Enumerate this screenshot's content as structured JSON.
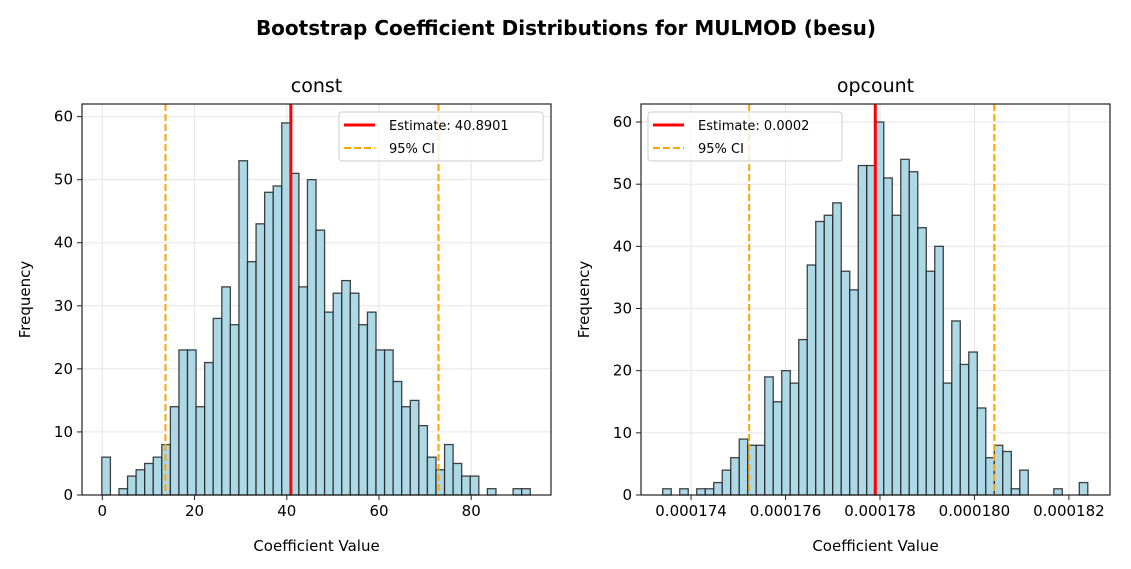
{
  "title": "Bootstrap Coefficient Distributions for MULMOD (besu)",
  "chart_data": [
    {
      "type": "bar",
      "subtype": "histogram",
      "title": "const",
      "xlabel": "Coefficient Value",
      "ylabel": "Frequency",
      "bin_range": [
        -0.1,
        92.8
      ],
      "counts": [
        6,
        0,
        1,
        3,
        4,
        5,
        6,
        8,
        14,
        23,
        23,
        14,
        21,
        28,
        33,
        27,
        53,
        37,
        43,
        48,
        49,
        59,
        51,
        33,
        50,
        42,
        29,
        32,
        34,
        32,
        27,
        29,
        23,
        23,
        18,
        14,
        15,
        11,
        6,
        4,
        8,
        5,
        3,
        3,
        0,
        1,
        0,
        0,
        1,
        1
      ],
      "xlim": [
        -4.4,
        97.3
      ],
      "ylim": [
        0,
        62
      ],
      "xticks": [
        0,
        20,
        40,
        60,
        80
      ],
      "xtick_labels": [
        "0",
        "20",
        "40",
        "60",
        "80"
      ],
      "yticks": [
        0,
        10,
        20,
        30,
        40,
        50,
        60
      ],
      "ytick_labels": [
        "0",
        "10",
        "20",
        "30",
        "40",
        "50",
        "60"
      ],
      "estimate": 40.8901,
      "ci": [
        13.7,
        72.9
      ],
      "legend": {
        "placement": "upper right",
        "estimate_label": "Estimate: 40.8901",
        "ci_label": "95% CI"
      },
      "grid": true
    },
    {
      "type": "bar",
      "subtype": "histogram",
      "title": "opcount",
      "xlabel": "Coefficient Value",
      "ylabel": "Frequency",
      "bin_range": [
        0.0001734,
        0.0001824
      ],
      "counts": [
        1,
        0,
        1,
        0,
        1,
        1,
        2,
        4,
        6,
        9,
        8,
        8,
        19,
        15,
        20,
        18,
        25,
        37,
        44,
        45,
        47,
        36,
        33,
        53,
        53,
        60,
        51,
        45,
        54,
        52,
        43,
        36,
        40,
        18,
        28,
        21,
        23,
        14,
        6,
        8,
        7,
        1,
        4,
        0,
        0,
        0,
        1,
        0,
        0,
        2
      ],
      "xlim": [
        0.00017294,
        0.00018287
      ],
      "ylim": [
        0,
        62.9
      ],
      "xticks": [
        0.000174,
        0.000176,
        0.000178,
        0.00018,
        0.000182
      ],
      "xtick_labels": [
        "0.000174",
        "0.000176",
        "0.000178",
        "0.000180",
        "0.000182"
      ],
      "yticks": [
        0,
        10,
        20,
        30,
        40,
        50,
        60
      ],
      "ytick_labels": [
        "0",
        "10",
        "20",
        "30",
        "40",
        "50",
        "60"
      ],
      "estimate": 0.0001779,
      "ci": [
        0.00017523,
        0.00018042
      ],
      "legend": {
        "placement": "upper left",
        "estimate_label": "Estimate: 0.0002",
        "ci_label": "95% CI"
      },
      "grid": true
    }
  ],
  "colors": {
    "bar_fill": "#add8e6",
    "bar_edge": "#222222",
    "estimate": "#ff0000",
    "ci": "#ffa500",
    "grid": "#e5e5e5"
  }
}
